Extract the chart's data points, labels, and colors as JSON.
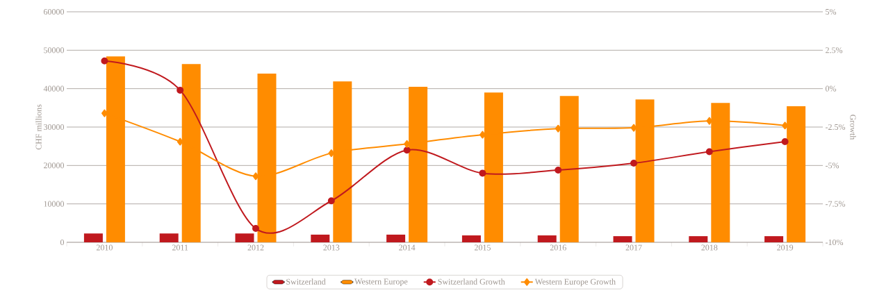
{
  "chart_data": {
    "type": "bar",
    "categories": [
      "2010",
      "2011",
      "2012",
      "2013",
      "2014",
      "2015",
      "2016",
      "2017",
      "2018",
      "2019"
    ],
    "ylabel": "CHF millions",
    "y2label": "Growth",
    "ylim": [
      0,
      60000
    ],
    "yticks": [
      0,
      10000,
      20000,
      30000,
      40000,
      50000,
      60000
    ],
    "y2lim": [
      -10,
      5
    ],
    "y2ticks": [
      {
        "value": -10,
        "label": "-10%"
      },
      {
        "value": -7.5,
        "label": "-7.5%"
      },
      {
        "value": -5,
        "label": "-5%"
      },
      {
        "value": -2.5,
        "label": "-2.5%"
      },
      {
        "value": 0,
        "label": "0%"
      },
      {
        "value": 2.5,
        "label": "2.5%"
      },
      {
        "value": 5,
        "label": "5%"
      }
    ],
    "grid": "y",
    "legend": "bottom",
    "series": [
      {
        "name": "Switzerland",
        "color": "#c0191e",
        "values": [
          2300,
          2300,
          2300,
          2000,
          2000,
          1800,
          1800,
          1600,
          1600,
          1600
        ]
      },
      {
        "name": "Western Europe",
        "color": "#ff8c00",
        "values": [
          48400,
          46400,
          43900,
          41900,
          40500,
          39000,
          38100,
          37200,
          36300,
          35400
        ]
      },
      {
        "name": "Switzerland Growth",
        "type": "line",
        "axis": "y2",
        "marker": "circle",
        "color": "#c0191e",
        "values": [
          1.8,
          -0.1,
          -9.1,
          -7.3,
          -4.0,
          -5.5,
          -5.3,
          -4.85,
          -4.1,
          -3.45
        ]
      },
      {
        "name": "Western Europe Growth",
        "type": "line",
        "axis": "y2",
        "marker": "diamond",
        "color": "#ff8c00",
        "values": [
          -1.6,
          -3.45,
          -5.7,
          -4.2,
          -3.6,
          -3.0,
          -2.6,
          -2.55,
          -2.1,
          -2.4
        ]
      }
    ]
  }
}
